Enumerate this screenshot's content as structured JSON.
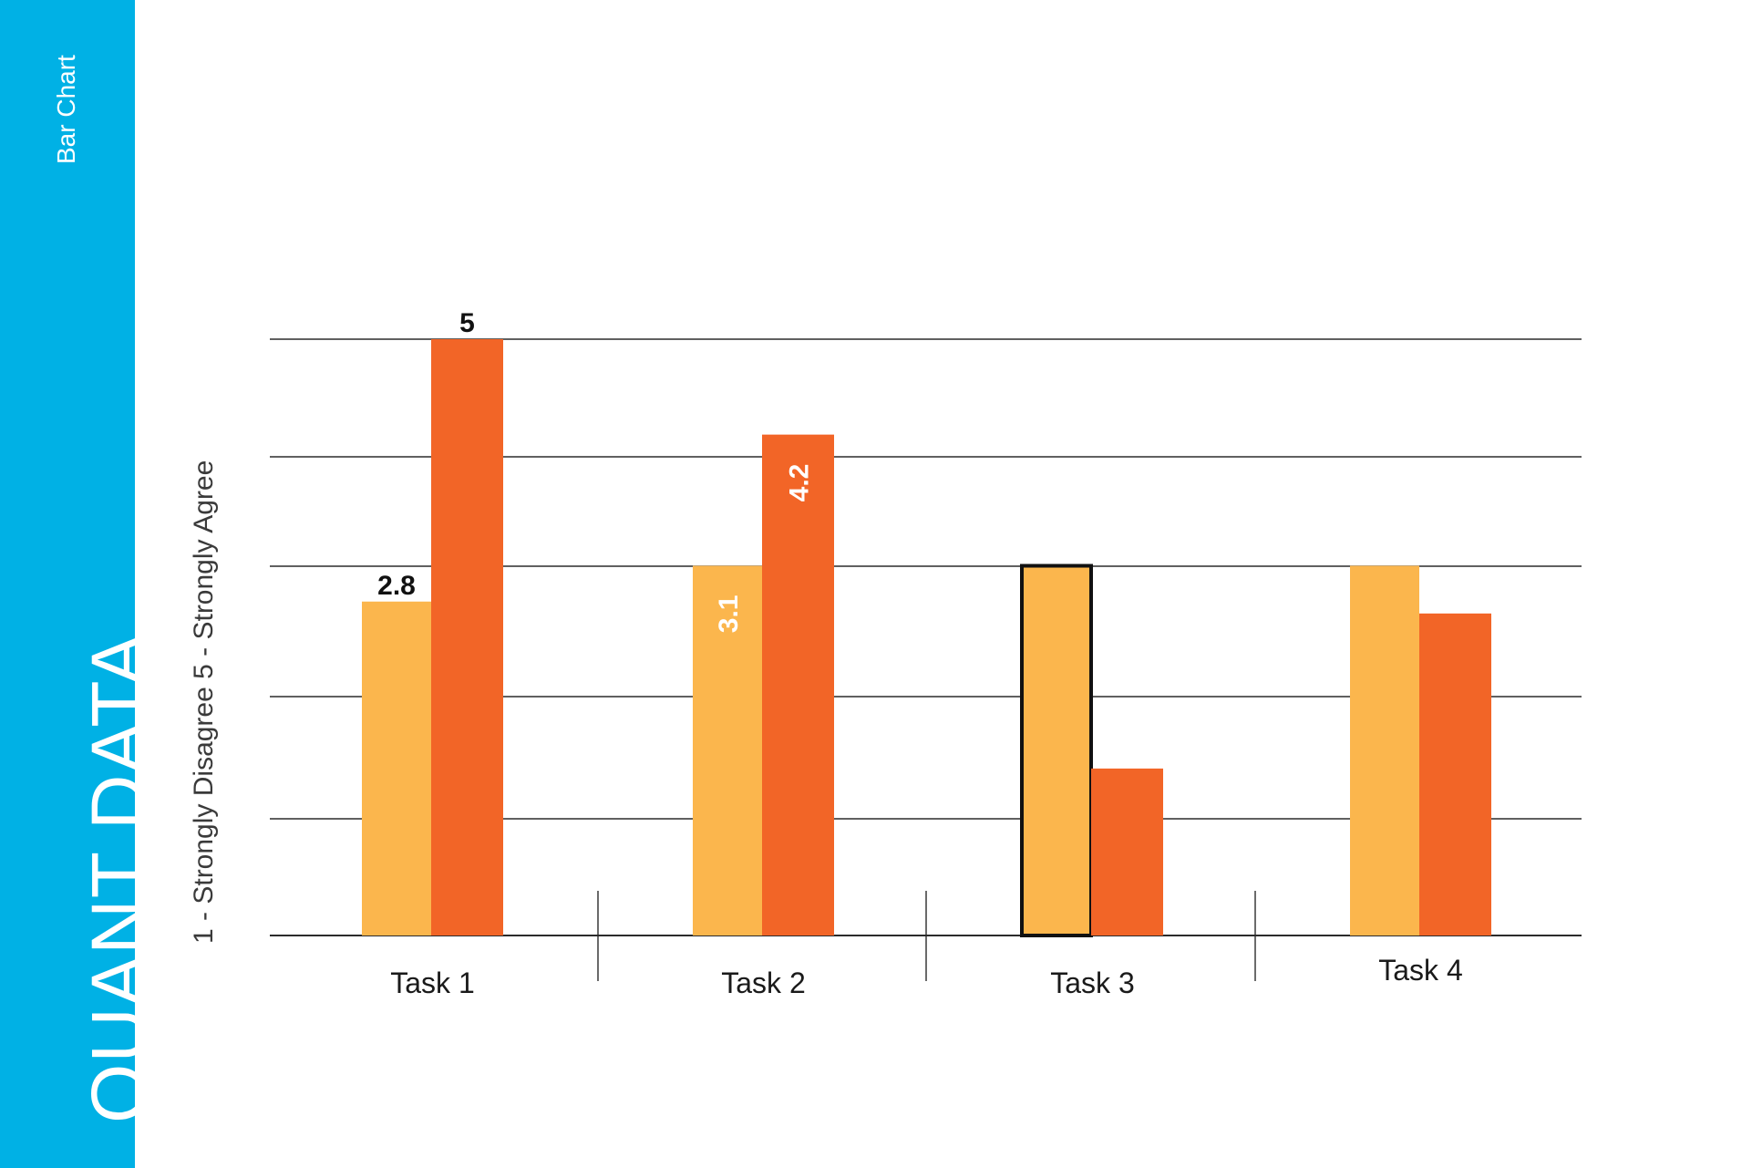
{
  "slide": {
    "title": "QUANT DATA",
    "subtitle": "Bar Chart"
  },
  "colors": {
    "band": "#00b1e5",
    "series_light": "#fbb64d",
    "series_dark": "#f26527"
  },
  "chart_data": {
    "type": "bar",
    "categories": [
      "Task 1",
      "Task 2",
      "Task 3",
      "Task 4"
    ],
    "ylabel": "1 - Strongly Disagree 5 - Strongly Agree",
    "ylim": [
      0,
      5
    ],
    "grid": true,
    "series": [
      {
        "color": "#fbb64d",
        "values": [
          2.8,
          3.1,
          3.1,
          3.1
        ]
      },
      {
        "color": "#f26527",
        "values": [
          5,
          4.2,
          1.4,
          2.7
        ]
      }
    ],
    "data_labels": [
      {
        "series": 0,
        "index": 0,
        "text": "2.8"
      },
      {
        "series": 1,
        "index": 0,
        "text": "5"
      },
      {
        "series": 0,
        "index": 1,
        "text": "3.1"
      },
      {
        "series": 1,
        "index": 1,
        "text": "4.2"
      }
    ],
    "highlighted_bar": {
      "series": 0,
      "index": 2
    }
  }
}
